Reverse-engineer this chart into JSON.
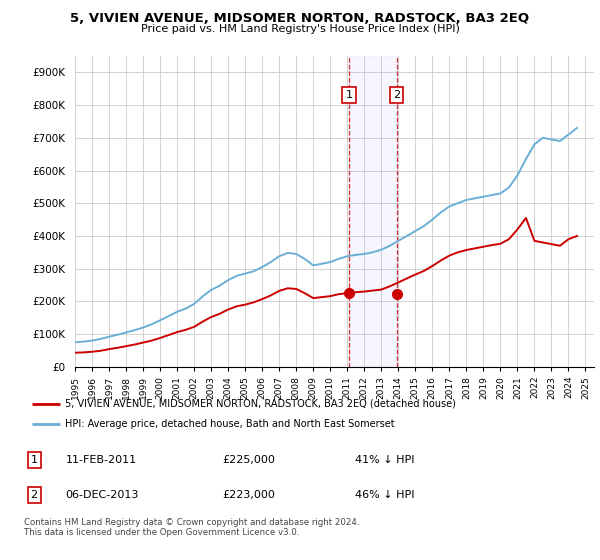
{
  "title": "5, VIVIEN AVENUE, MIDSOMER NORTON, RADSTOCK, BA3 2EQ",
  "subtitle": "Price paid vs. HM Land Registry's House Price Index (HPI)",
  "legend_line1": "5, VIVIEN AVENUE, MIDSOMER NORTON, RADSTOCK, BA3 2EQ (detached house)",
  "legend_line2": "HPI: Average price, detached house, Bath and North East Somerset",
  "footer": "Contains HM Land Registry data © Crown copyright and database right 2024.\nThis data is licensed under the Open Government Licence v3.0.",
  "annotation1_label": "1",
  "annotation1_date": "11-FEB-2011",
  "annotation1_price": "£225,000",
  "annotation1_hpi": "41% ↓ HPI",
  "annotation2_label": "2",
  "annotation2_date": "06-DEC-2013",
  "annotation2_price": "£223,000",
  "annotation2_hpi": "46% ↓ HPI",
  "hpi_color": "#6baed6",
  "price_color": "#cc0000",
  "annotation_color": "#cc0000",
  "background_color": "#ffffff",
  "grid_color": "#cccccc",
  "ylim": [
    0,
    950000
  ],
  "yticks": [
    0,
    100000,
    200000,
    300000,
    400000,
    500000,
    600000,
    700000,
    800000,
    900000
  ],
  "ytick_labels": [
    "£0",
    "£100K",
    "£200K",
    "£300K",
    "£400K",
    "£500K",
    "£600K",
    "£700K",
    "£800K",
    "£900K"
  ],
  "sale1_year": 2011.1,
  "sale1_price": 225000,
  "sale2_year": 2013.9,
  "sale2_price": 223000,
  "hpi_years": [
    1995,
    1995.5,
    1996,
    1996.5,
    1997,
    1997.5,
    1998,
    1998.5,
    1999,
    1999.5,
    2000,
    2000.5,
    2001,
    2001.5,
    2002,
    2002.5,
    2003,
    2003.5,
    2004,
    2004.5,
    2005,
    2005.5,
    2006,
    2006.5,
    2007,
    2007.5,
    2008,
    2008.5,
    2009,
    2009.5,
    2010,
    2010.5,
    2011,
    2011.5,
    2012,
    2012.5,
    2013,
    2013.5,
    2014,
    2014.5,
    2015,
    2015.5,
    2016,
    2016.5,
    2017,
    2017.5,
    2018,
    2018.5,
    2019,
    2019.5,
    2020,
    2020.5,
    2021,
    2021.5,
    2022,
    2022.5,
    2023,
    2023.5,
    2024,
    2024.5
  ],
  "hpi_values": [
    75000,
    77000,
    80000,
    85000,
    92000,
    98000,
    105000,
    112000,
    120000,
    130000,
    142000,
    155000,
    168000,
    178000,
    192000,
    215000,
    235000,
    248000,
    265000,
    278000,
    285000,
    292000,
    305000,
    320000,
    338000,
    348000,
    345000,
    330000,
    310000,
    315000,
    320000,
    330000,
    338000,
    342000,
    345000,
    350000,
    358000,
    370000,
    385000,
    400000,
    415000,
    430000,
    450000,
    472000,
    490000,
    500000,
    510000,
    515000,
    520000,
    525000,
    530000,
    548000,
    585000,
    635000,
    680000,
    700000,
    695000,
    690000,
    710000,
    730000
  ],
  "price_years": [
    1995,
    1995.5,
    1996,
    1996.5,
    1997,
    1997.5,
    1998,
    1998.5,
    1999,
    1999.5,
    2000,
    2000.5,
    2001,
    2001.5,
    2002,
    2002.5,
    2003,
    2003.5,
    2004,
    2004.5,
    2005,
    2005.5,
    2006,
    2006.5,
    2007,
    2007.5,
    2008,
    2008.5,
    2009,
    2009.5,
    2010,
    2010.5,
    2011,
    2011.5,
    2012,
    2012.5,
    2013,
    2013.5,
    2014,
    2014.5,
    2015,
    2015.5,
    2016,
    2016.5,
    2017,
    2017.5,
    2018,
    2018.5,
    2019,
    2019.5,
    2020,
    2020.5,
    2021,
    2021.5,
    2022,
    2022.5,
    2023,
    2023.5,
    2024,
    2024.5
  ],
  "price_values": [
    43000,
    44000,
    46000,
    49000,
    54000,
    58000,
    63000,
    68000,
    74000,
    80000,
    88000,
    97000,
    106000,
    113000,
    122000,
    138000,
    152000,
    162000,
    175000,
    185000,
    190000,
    197000,
    207000,
    218000,
    232000,
    240000,
    238000,
    225000,
    210000,
    213000,
    216000,
    222000,
    225000,
    228000,
    230000,
    233000,
    236000,
    246000,
    258000,
    270000,
    282000,
    293000,
    308000,
    325000,
    340000,
    350000,
    357000,
    362000,
    367000,
    372000,
    376000,
    390000,
    420000,
    455000,
    385000,
    380000,
    375000,
    370000,
    390000,
    400000
  ]
}
